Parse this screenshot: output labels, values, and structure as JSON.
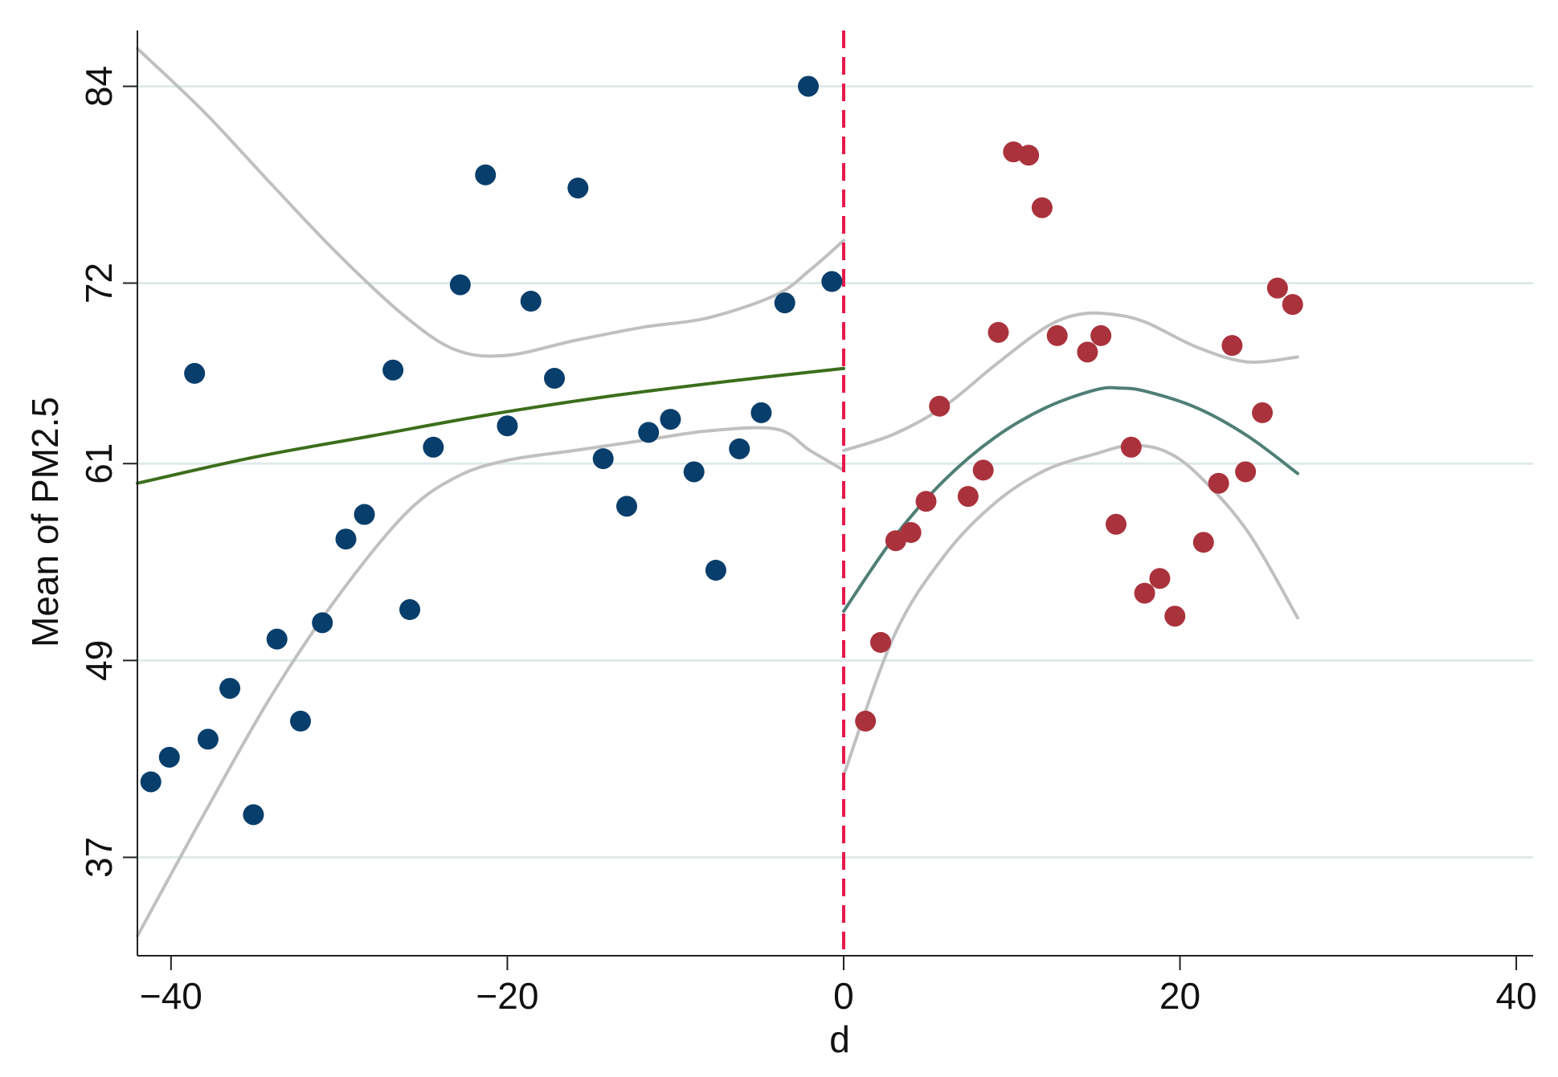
{
  "chart_data": {
    "type": "scatter",
    "title": "",
    "xlabel": "d",
    "ylabel": "Mean of PM2.5",
    "xlim": [
      -42,
      41
    ],
    "ylim": [
      31,
      87.4
    ],
    "x_ticks": [
      -40,
      -20,
      0,
      20,
      40
    ],
    "x_tick_labels": [
      "−40",
      "−20",
      "0",
      "20",
      "40"
    ],
    "y_ticks": [
      37,
      49,
      61,
      72,
      84
    ],
    "y_tick_labels": [
      "37",
      "49",
      "61",
      "72",
      "84"
    ],
    "grid": "horizontal",
    "legend": "none",
    "cutoff": {
      "x": 0,
      "color": "#e8174a",
      "style": "dashed"
    },
    "colors": {
      "left_points": "#083e6b",
      "right_points": "#aa323c",
      "left_fit": "#3c6e1c",
      "right_fit": "#4f7f76",
      "ci": "#c0c0c0",
      "grid": "#dfeaea",
      "axis": "#222222"
    },
    "series": [
      {
        "kind": "points",
        "side": "left",
        "x": [
          -41.2,
          -40.1,
          -38.6,
          -37.8,
          -36.5,
          -35.1,
          -33.7,
          -32.3,
          -31.0,
          -29.6,
          -28.5,
          -26.8,
          -25.8,
          -24.4,
          -22.8,
          -21.3,
          -20.0,
          -18.6,
          -17.2,
          -15.8,
          -14.3,
          -12.9,
          -11.6,
          -10.3,
          -8.9,
          -7.6,
          -6.2,
          -4.9,
          -3.5,
          -2.1,
          -0.7
        ],
        "y": [
          41.6,
          43.1,
          66.5,
          44.2,
          47.3,
          39.6,
          50.3,
          45.3,
          51.3,
          56.4,
          57.9,
          66.7,
          52.1,
          62.0,
          71.9,
          78.6,
          63.3,
          70.9,
          66.2,
          77.8,
          61.3,
          58.4,
          62.9,
          63.7,
          60.5,
          54.5,
          61.9,
          64.1,
          70.8,
          84.0,
          72.1
        ]
      },
      {
        "kind": "points",
        "side": "right",
        "x": [
          1.3,
          2.2,
          3.1,
          4.0,
          4.9,
          5.7,
          7.4,
          8.3,
          9.2,
          10.1,
          11.0,
          11.8,
          12.7,
          14.5,
          15.3,
          16.2,
          17.1,
          17.9,
          18.8,
          19.7,
          21.4,
          22.3,
          23.1,
          23.9,
          24.9,
          25.8,
          26.7
        ],
        "y": [
          45.3,
          50.1,
          56.3,
          56.8,
          58.7,
          64.5,
          59.0,
          60.6,
          69.0,
          80.0,
          79.8,
          76.6,
          68.8,
          67.8,
          68.8,
          57.3,
          62.0,
          53.1,
          54.0,
          51.7,
          56.2,
          59.8,
          68.2,
          60.5,
          64.1,
          71.7,
          70.7
        ]
      },
      {
        "kind": "fit",
        "side": "left",
        "x": [
          -42,
          -35,
          -28,
          -21,
          -14,
          -7,
          0
        ],
        "y": [
          59.8,
          61.4,
          62.7,
          64.0,
          65.1,
          66.0,
          66.8
        ]
      },
      {
        "kind": "ci",
        "side": "left",
        "bound": "upper",
        "x": [
          -42,
          -38,
          -34,
          -30,
          -26,
          -23,
          -20,
          -16,
          -12,
          -8,
          -4,
          -2,
          0
        ],
        "y": [
          86.3,
          82.4,
          78.0,
          73.7,
          69.9,
          67.9,
          67.6,
          68.5,
          69.3,
          69.9,
          71.3,
          72.8,
          74.6
        ]
      },
      {
        "kind": "ci",
        "side": "left",
        "bound": "lower",
        "x": [
          -42,
          -38,
          -34,
          -30,
          -26,
          -23,
          -20,
          -16,
          -12,
          -8,
          -4,
          -2,
          0
        ],
        "y": [
          32.2,
          39.7,
          46.9,
          53.0,
          58.0,
          60.2,
          61.2,
          61.8,
          62.4,
          63.0,
          63.1,
          61.8,
          60.6
        ]
      },
      {
        "kind": "fit",
        "side": "right",
        "x": [
          0,
          3,
          6,
          9,
          12,
          15,
          16.5,
          18,
          21,
          24,
          27
        ],
        "y": [
          52.0,
          56.5,
          60.0,
          62.6,
          64.4,
          65.5,
          65.6,
          65.4,
          64.4,
          62.7,
          60.4
        ]
      },
      {
        "kind": "ci",
        "side": "right",
        "bound": "upper",
        "x": [
          0,
          3,
          6,
          9,
          12,
          14,
          16,
          18,
          21,
          24,
          27
        ],
        "y": [
          61.8,
          62.8,
          64.5,
          67.0,
          69.3,
          70.1,
          70.1,
          69.6,
          68.1,
          67.2,
          67.5
        ]
      },
      {
        "kind": "ci",
        "side": "right",
        "bound": "lower",
        "x": [
          0,
          3,
          6,
          9,
          12,
          15,
          17,
          19,
          21,
          24,
          27
        ],
        "y": [
          42.0,
          50.5,
          55.4,
          58.6,
          60.6,
          61.6,
          62.1,
          61.8,
          60.4,
          56.9,
          51.6
        ]
      }
    ]
  }
}
